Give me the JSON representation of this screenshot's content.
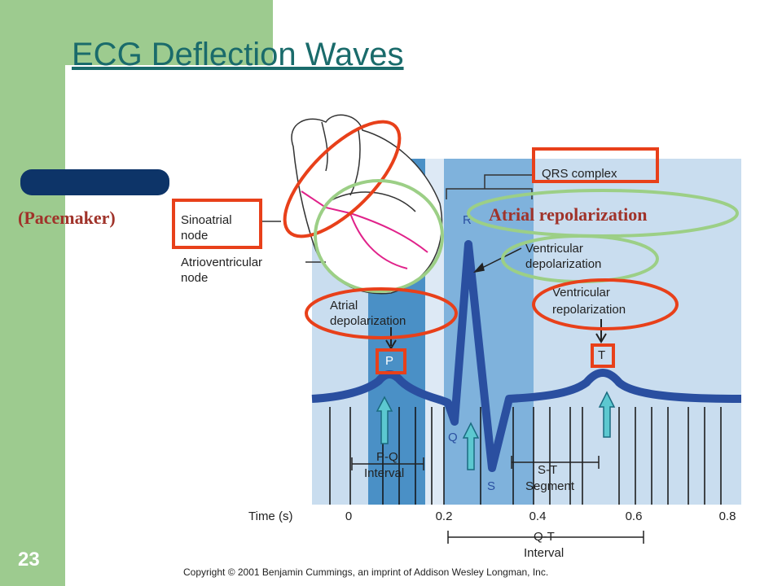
{
  "title": "ECG Deflection Waves",
  "slide_number": "23",
  "side_labels": {
    "pacemaker": "(Pacemaker)",
    "atrial_repolarization": "Atrial repolarization"
  },
  "labels": {
    "sinoatrial_node": [
      "Sinoatrial",
      "node"
    ],
    "atrioventricular_node": [
      "Atrioventricular",
      "node"
    ],
    "qrs_complex": "QRS complex",
    "ventricular_depolarization": [
      "Ventricular",
      "depolarization"
    ],
    "ventricular_repolarization": [
      "Ventricular",
      "repolarization"
    ],
    "atrial_depolarization": [
      "Atrial",
      "depolarization"
    ],
    "pq_interval": [
      "P-Q",
      "Interval"
    ],
    "st_segment": [
      "S-T",
      "Segment"
    ],
    "qt_interval": [
      "Q-T",
      "Interval"
    ]
  },
  "waves": {
    "p": "P",
    "q": "Q",
    "r": "R",
    "s": "S",
    "t": "T"
  },
  "time_axis": {
    "label": "Time (s)",
    "ticks": [
      "0",
      "0.2",
      "0.4",
      "0.6",
      "0.8"
    ]
  },
  "copyright": "Copyright © 2001 Benjamin Cummings, an imprint of Addison Wesley Longman, Inc."
}
